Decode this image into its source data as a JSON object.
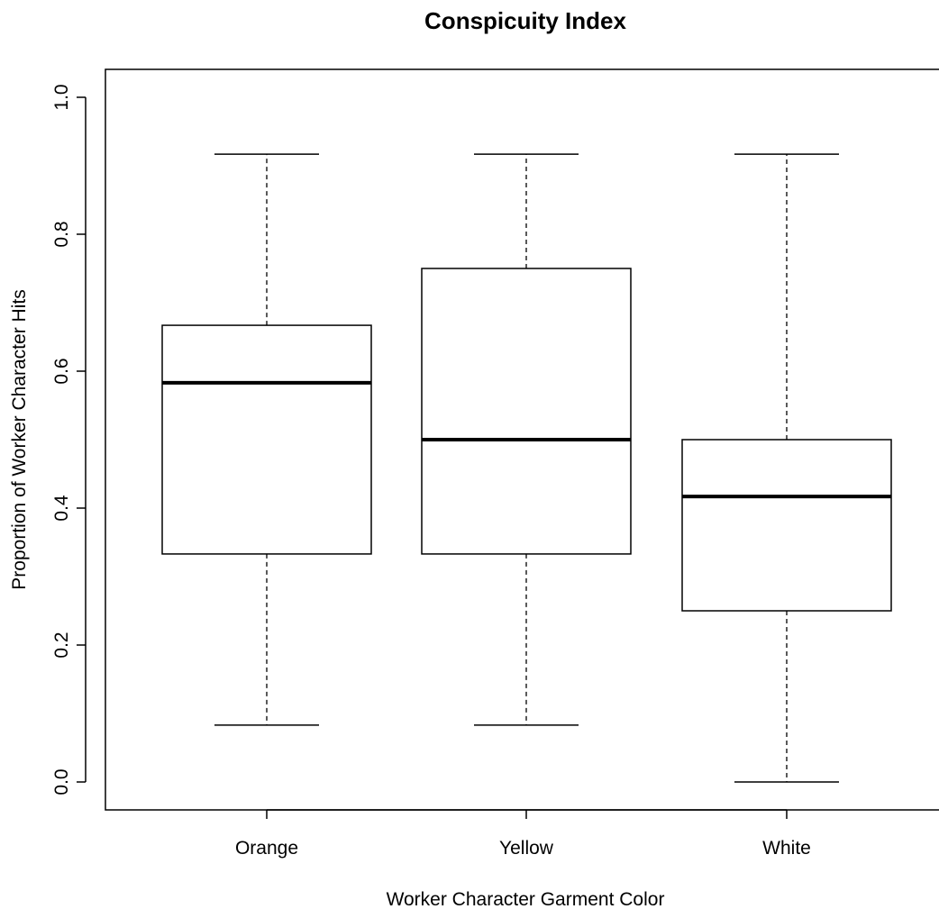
{
  "chart_data": {
    "type": "boxplot",
    "title": "Conspicuity Index",
    "xlabel": "Worker Character Garment Color",
    "ylabel": "Proportion of Worker Character Hits",
    "ylim": [
      -0.04,
      1.04
    ],
    "y_ticks": [
      "0.0",
      "0.2",
      "0.4",
      "0.6",
      "0.8",
      "1.0"
    ],
    "grid": false,
    "categories": [
      "Orange",
      "Yellow",
      "White"
    ],
    "boxes": [
      {
        "category": "Orange",
        "min": 0.083,
        "q1": 0.333,
        "median": 0.583,
        "q3": 0.667,
        "max": 0.917
      },
      {
        "category": "Yellow",
        "min": 0.083,
        "q1": 0.333,
        "median": 0.5,
        "q3": 0.75,
        "max": 0.917
      },
      {
        "category": "White",
        "min": 0.0,
        "q1": 0.25,
        "median": 0.417,
        "q3": 0.5,
        "max": 0.917
      }
    ]
  },
  "colors": {
    "box_fill": "#ffffff",
    "stroke": "#000000",
    "background": "#ffffff"
  }
}
